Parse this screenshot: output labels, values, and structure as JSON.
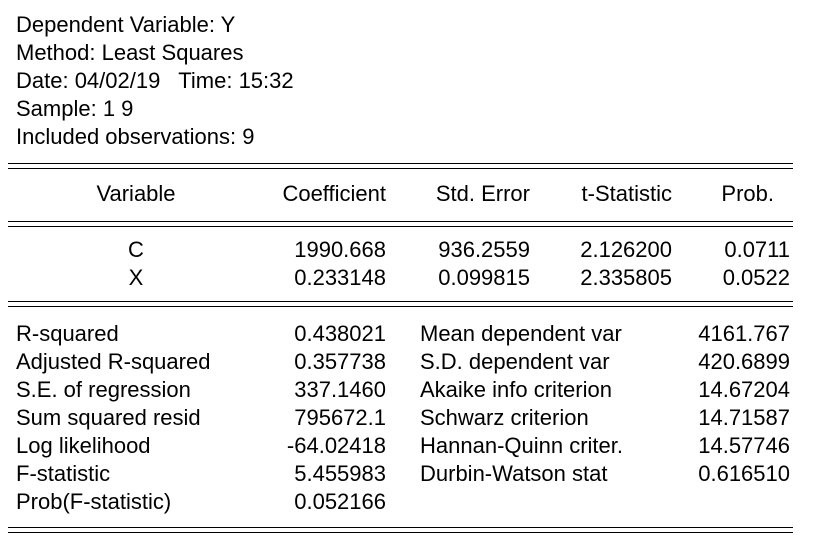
{
  "header": {
    "dependent": "Dependent Variable: Y",
    "method": "Method: Least Squares",
    "date_time": "Date: 04/02/19   Time: 15:32",
    "sample": "Sample: 1 9",
    "observations": "Included observations: 9"
  },
  "columns": {
    "variable": "Variable",
    "coefficient": "Coefficient",
    "std_error": "Std. Error",
    "t_stat": "t-Statistic",
    "prob": "Prob."
  },
  "coefficients": [
    {
      "variable": "C",
      "coefficient": "1990.668",
      "std_error": "936.2559",
      "t_stat": "2.126200",
      "prob": "0.0711"
    },
    {
      "variable": "X",
      "coefficient": "0.233148",
      "std_error": "0.099815",
      "t_stat": "2.335805",
      "prob": "0.0522"
    }
  ],
  "stats_left": [
    {
      "label": "R-squared",
      "value": "0.438021"
    },
    {
      "label": "Adjusted R-squared",
      "value": "0.357738"
    },
    {
      "label": "S.E. of regression",
      "value": "337.1460"
    },
    {
      "label": "Sum squared resid",
      "value": "795672.1"
    },
    {
      "label": "Log likelihood",
      "value": "-64.02418"
    },
    {
      "label": "F-statistic",
      "value": "5.455983"
    },
    {
      "label": "Prob(F-statistic)",
      "value": "0.052166"
    }
  ],
  "stats_right": [
    {
      "label": "Mean dependent var",
      "value": "4161.767"
    },
    {
      "label": "S.D. dependent var",
      "value": "420.6899"
    },
    {
      "label": "Akaike info criterion",
      "value": "14.67204"
    },
    {
      "label": "Schwarz criterion",
      "value": "14.71587"
    },
    {
      "label": "Hannan-Quinn criter.",
      "value": "14.57746"
    },
    {
      "label": "Durbin-Watson stat",
      "value": "0.616510"
    }
  ]
}
